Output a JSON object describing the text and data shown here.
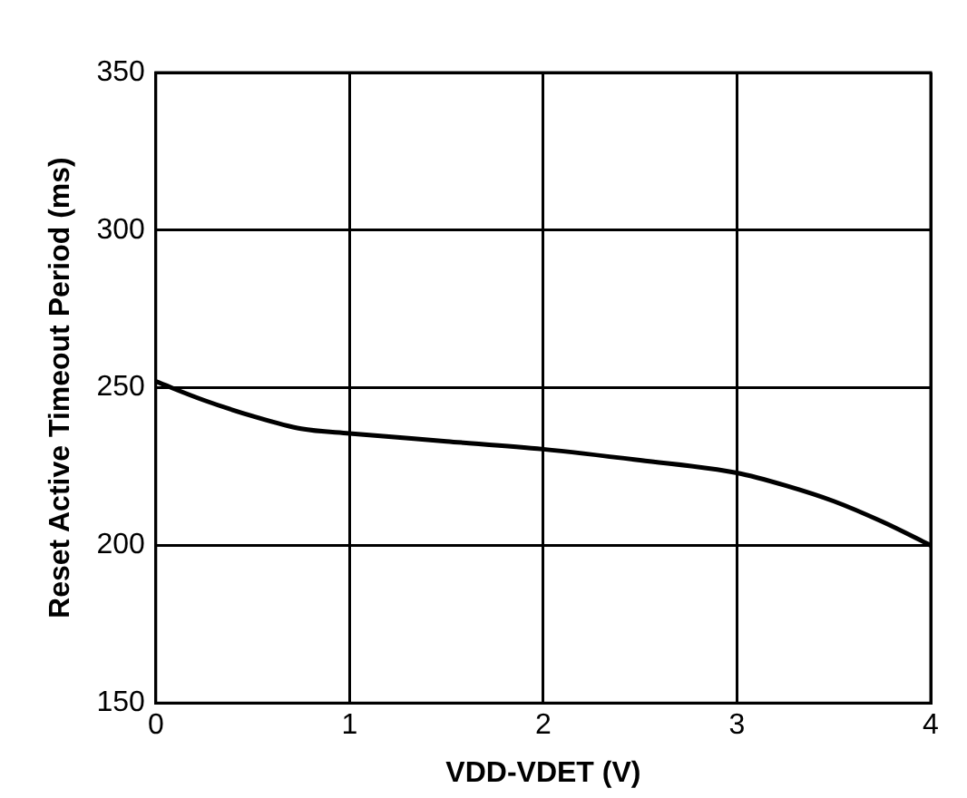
{
  "chart_data": {
    "type": "line",
    "xlabel": "VDD-VDET (V)",
    "ylabel": "Reset Active Timeout Period (ms)",
    "x": [
      0,
      0.25,
      0.5,
      0.75,
      1,
      1.5,
      2,
      2.5,
      3,
      3.25,
      3.5,
      3.75,
      4
    ],
    "series": [
      {
        "color": "#000000",
        "values": [
          252,
          246,
          241,
          237,
          235.5,
          233,
          230.5,
          227,
          223,
          219,
          214,
          207.5,
          200
        ]
      }
    ],
    "xlim": [
      0,
      4
    ],
    "xticks": [
      0,
      1,
      2,
      3,
      4
    ],
    "ylim": [
      150,
      350
    ],
    "yticks": [
      150,
      200,
      250,
      300,
      350
    ],
    "grid": true,
    "legend": false,
    "marker": "none",
    "line_style": "solid"
  }
}
